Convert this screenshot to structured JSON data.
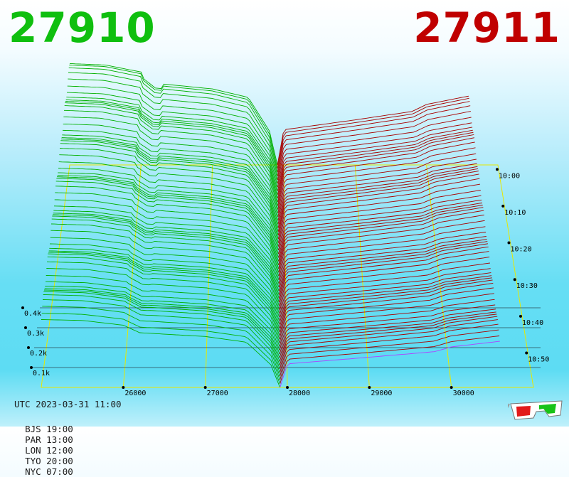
{
  "header": {
    "bid_price": "27910",
    "ask_price": "27911"
  },
  "footer": {
    "utc": "UTC 2023-03-31 11:00",
    "zones": [
      {
        "label": "BJS 19:00"
      },
      {
        "label": "PAR 13:00"
      },
      {
        "label": "LON 12:00"
      },
      {
        "label": "TYO 20:00"
      },
      {
        "label": "NYC 07:00"
      }
    ]
  },
  "icons": {
    "glasses": "3d-glasses-icon"
  },
  "colors": {
    "bids": "#00b000",
    "asks": "#a80000",
    "latest_ask": "#b040ff",
    "grid": "#e8e800",
    "bid_price": "#0fbf0f",
    "ask_price": "#c00000"
  },
  "chart_data": {
    "type": "area",
    "description_type": "3d order book depth (market depth over time)",
    "x_axis": {
      "ticks": [
        26000,
        27000,
        28000,
        29000,
        30000
      ],
      "range": [
        25000,
        31000
      ]
    },
    "y_axis": {
      "ticks": [
        100,
        200,
        300,
        400
      ],
      "tick_labels": [
        "0.1k",
        "0.2k",
        "0.3k",
        "0.4k"
      ],
      "range": [
        0,
        400
      ]
    },
    "z_axis": {
      "ticks": [
        "10:00",
        "10:10",
        "10:20",
        "10:30",
        "10:40",
        "10:50"
      ]
    },
    "snapshots": 61,
    "mid_price": 27910,
    "bid_depth_at_price": [
      {
        "price": 25000,
        "depth": 360
      },
      {
        "price": 25500,
        "depth": 355
      },
      {
        "price": 26000,
        "depth": 330
      },
      {
        "price": 26200,
        "depth": 290
      },
      {
        "price": 27000,
        "depth": 270
      },
      {
        "price": 27500,
        "depth": 240
      },
      {
        "price": 27800,
        "depth": 120
      },
      {
        "price": 27910,
        "depth": 0
      }
    ],
    "ask_depth_at_price": [
      {
        "price": 27911,
        "depth": 0
      },
      {
        "price": 28000,
        "depth": 125
      },
      {
        "price": 29000,
        "depth": 160
      },
      {
        "price": 29800,
        "depth": 190
      },
      {
        "price": 30000,
        "depth": 215
      },
      {
        "price": 30600,
        "depth": 245
      }
    ]
  }
}
